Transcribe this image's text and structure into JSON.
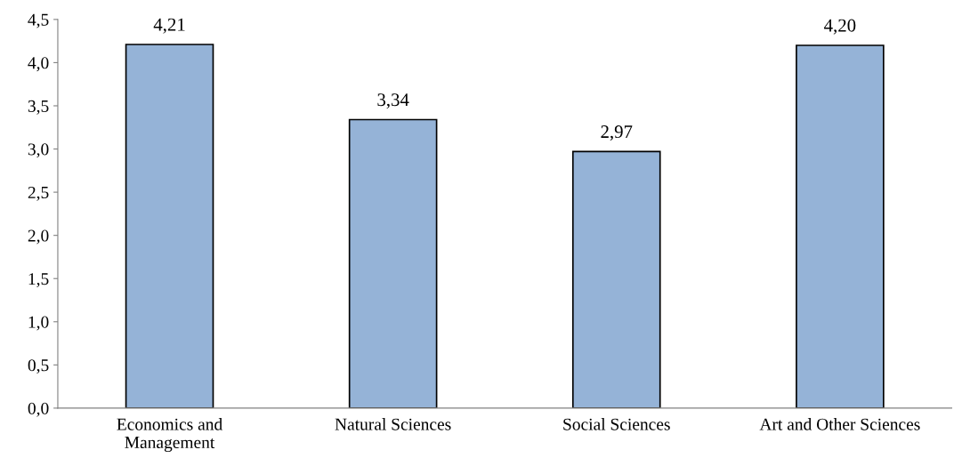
{
  "chart_data": {
    "type": "bar",
    "categories": [
      "Economics and\nManagement",
      "Natural Sciences",
      "Social Sciences",
      "Art and Other Sciences"
    ],
    "values": [
      4.21,
      3.34,
      2.97,
      4.2
    ],
    "value_labels": [
      "4,21",
      "3,34",
      "2,97",
      "4,20"
    ],
    "color": "#95b3d7",
    "ylim": [
      0,
      4.5
    ],
    "yticks": [
      {
        "value": 0,
        "label": "0,0"
      },
      {
        "value": 0.5,
        "label": "0,5"
      },
      {
        "value": 1.0,
        "label": "1,0"
      },
      {
        "value": 1.5,
        "label": "1,5"
      },
      {
        "value": 2.0,
        "label": "2,0"
      },
      {
        "value": 2.5,
        "label": "2,5"
      },
      {
        "value": 3.0,
        "label": "3,0"
      },
      {
        "value": 3.5,
        "label": "3,5"
      },
      {
        "value": 4.0,
        "label": "4,0"
      },
      {
        "value": 4.5,
        "label": "4,5"
      }
    ],
    "grid": false,
    "legend": false
  }
}
